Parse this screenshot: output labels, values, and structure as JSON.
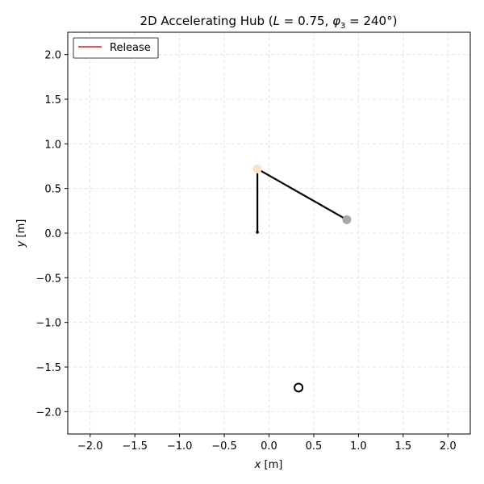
{
  "chart_data": {
    "type": "scatter",
    "title_prefix": "2D Accelerating Hub (",
    "title_L_symbol": "L",
    "title_L_value": " = 0.75, ",
    "title_phi_symbol": "φ",
    "title_phi_sub": "3",
    "title_phi_value": " = 240°)",
    "xlabel_var": "x",
    "xlabel_unit": " [m]",
    "ylabel_var": "y",
    "ylabel_unit": " [m]",
    "xlim": [
      -2.25,
      2.25
    ],
    "ylim": [
      -2.25,
      2.25
    ],
    "xticks": [
      -2.0,
      -1.5,
      -1.0,
      -0.5,
      0.0,
      0.5,
      1.0,
      1.5,
      2.0
    ],
    "yticks": [
      -2.0,
      -1.5,
      -1.0,
      -0.5,
      0.0,
      0.5,
      1.0,
      1.5,
      2.0
    ],
    "xtick_labels": [
      "−2.0",
      "−1.5",
      "−1.0",
      "−0.5",
      "0.0",
      "0.5",
      "1.0",
      "1.5",
      "2.0"
    ],
    "ytick_labels": [
      "−2.0",
      "−1.5",
      "−1.0",
      "−0.5",
      "0.0",
      "0.5",
      "1.0",
      "1.5",
      "2.0"
    ],
    "grid": true,
    "legend": {
      "placement": "top-left",
      "entries": [
        {
          "label": "Release",
          "color": "#e41a1c"
        }
      ]
    },
    "hub": {
      "x": -0.13,
      "y": 0.01
    },
    "joint": {
      "x": -0.13,
      "y": 0.72,
      "color": "#ffe4c4"
    },
    "tip": {
      "x": 0.87,
      "y": 0.15,
      "color": "#a9a9a9"
    },
    "target": {
      "x": 0.33,
      "y": -1.73
    }
  }
}
